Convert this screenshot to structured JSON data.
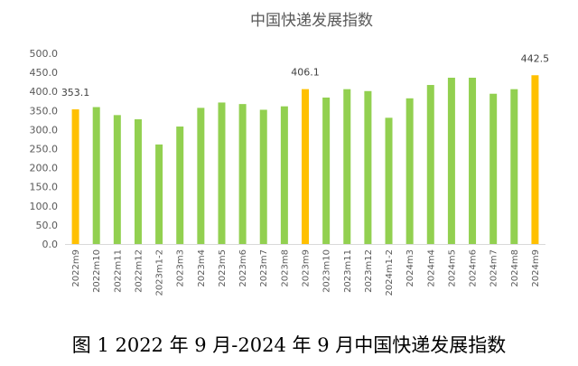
{
  "caption": "图 1 2022 年 9 月-2024 年 9 月中国快递发展指数",
  "chart_data": {
    "type": "bar",
    "title": "中国快递发展指数",
    "xlabel": "",
    "ylabel": "",
    "ylim": [
      0,
      500
    ],
    "yticks": [
      "0.0",
      "50.0",
      "100.0",
      "150.0",
      "200.0",
      "250.0",
      "300.0",
      "350.0",
      "400.0",
      "450.0",
      "500.0"
    ],
    "grid": false,
    "legend": "none",
    "categories": [
      "2022m9",
      "2022m10",
      "2022m11",
      "2022m12",
      "2023m1-2",
      "2023m3",
      "2023m4",
      "2023m5",
      "2023m6",
      "2023m7",
      "2023m8",
      "2023m9",
      "2023m10",
      "2023m11",
      "2023m12",
      "2024m1-2",
      "2024m3",
      "2024m4",
      "2024m5",
      "2024m6",
      "2024m7",
      "2024m8",
      "2024m9"
    ],
    "values": [
      353.1,
      359,
      338,
      327,
      261,
      308,
      357,
      371,
      367,
      352,
      361,
      406.1,
      384,
      406,
      401,
      331,
      382,
      417,
      436,
      436,
      394,
      406,
      442.5
    ],
    "highlight_indices": [
      0,
      11,
      22
    ],
    "data_labels": [
      {
        "index": 0,
        "text": "353.1"
      },
      {
        "index": 11,
        "text": "406.1"
      },
      {
        "index": 22,
        "text": "442.5"
      }
    ],
    "colors": {
      "normal": "#92D050",
      "highlight": "#FFC000",
      "axis": "#D9D9D9",
      "text": "#595959"
    }
  }
}
